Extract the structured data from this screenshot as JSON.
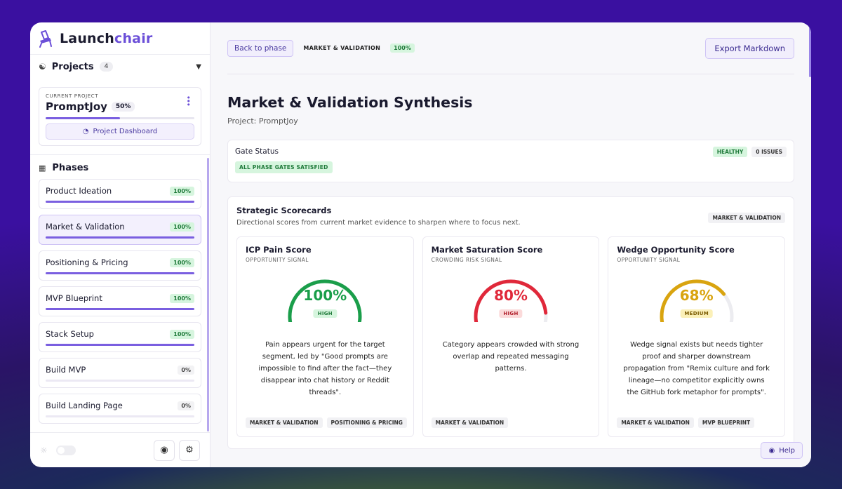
{
  "app": {
    "logo_prefix": "Launch",
    "logo_suffix": "chair"
  },
  "sidebar": {
    "projects_label": "Projects",
    "projects_count": "4",
    "current_project_label": "CURRENT PROJECT",
    "current_project_name": "PromptJoy",
    "current_project_pct": "50%",
    "current_project_progress": 0.5,
    "dashboard_label": "Project Dashboard",
    "phases_label": "Phases",
    "phases": [
      {
        "name": "Product Ideation",
        "pct": "100%",
        "progress": 1.0,
        "active": false
      },
      {
        "name": "Market & Validation",
        "pct": "100%",
        "progress": 1.0,
        "active": true
      },
      {
        "name": "Positioning & Pricing",
        "pct": "100%",
        "progress": 1.0,
        "active": false
      },
      {
        "name": "MVP Blueprint",
        "pct": "100%",
        "progress": 1.0,
        "active": false
      },
      {
        "name": "Stack Setup",
        "pct": "100%",
        "progress": 1.0,
        "active": false
      },
      {
        "name": "Build MVP",
        "pct": "0%",
        "progress": 0.0,
        "active": false
      },
      {
        "name": "Build Landing Page",
        "pct": "0%",
        "progress": 0.0,
        "active": false
      }
    ]
  },
  "topbar": {
    "back_label": "Back to phase",
    "crumb": "MARKET & VALIDATION",
    "crumb_pct": "100%",
    "export_label": "Export Markdown"
  },
  "page": {
    "title": "Market & Validation Synthesis",
    "subtitle": "Project: PromptJoy"
  },
  "gate": {
    "title": "Gate Status",
    "tag": "ALL PHASE GATES SATISFIED",
    "healthy": "HEALTHY",
    "issues": "0 ISSUES"
  },
  "scorecards": {
    "title": "Strategic Scorecards",
    "description": "Directional scores from current market evidence to sharpen where to focus next.",
    "badge": "MARKET & VALIDATION",
    "cards": [
      {
        "title": "ICP Pain Score",
        "subtitle": "OPPORTUNITY SIGNAL",
        "value": "100%",
        "fraction": 1.0,
        "level": "HIGH",
        "color": "#1a9e4a",
        "level_bg": "#d6f5de",
        "level_fg": "#1f7a3a",
        "text": "Pain appears urgent for the target segment, led by \"Good prompts are impossible to find after the fact—they disappear into chat history or Reddit threads\".",
        "tags": [
          "MARKET & VALIDATION",
          "POSITIONING & PRICING"
        ]
      },
      {
        "title": "Market Saturation Score",
        "subtitle": "CROWDING RISK SIGNAL",
        "value": "80%",
        "fraction": 0.8,
        "level": "HIGH",
        "color": "#e0283a",
        "level_bg": "#fbdada",
        "level_fg": "#b01e2a",
        "text": "Category appears crowded with strong overlap and repeated messaging patterns.",
        "tags": [
          "MARKET & VALIDATION"
        ]
      },
      {
        "title": "Wedge Opportunity Score",
        "subtitle": "OPPORTUNITY SIGNAL",
        "value": "68%",
        "fraction": 0.68,
        "level": "MEDIUM",
        "color": "#d9a40f",
        "level_bg": "#fbf0b8",
        "level_fg": "#7a5a00",
        "text": "Wedge signal exists but needs tighter proof and sharper downstream propagation from \"Remix culture and fork lineage—no competitor explicitly owns the GitHub fork metaphor for prompts\".",
        "tags": [
          "MARKET & VALIDATION",
          "MVP BLUEPRINT"
        ]
      }
    ]
  },
  "help_label": "Help"
}
